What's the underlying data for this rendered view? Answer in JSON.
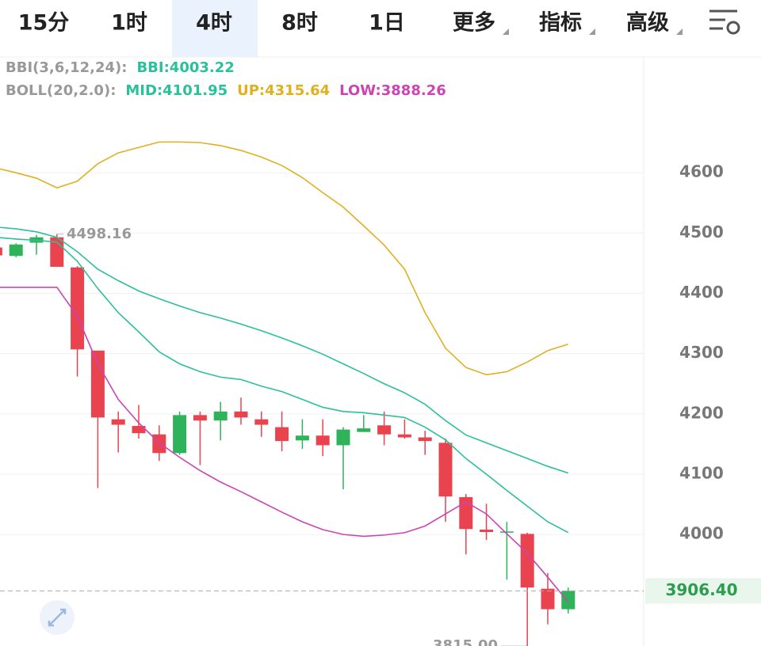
{
  "tabs": {
    "items": [
      "15分",
      "1时",
      "4时",
      "8时",
      "1日",
      "更多",
      "指标",
      "高级"
    ],
    "active": 2,
    "dropdown": [
      5,
      6,
      7
    ]
  },
  "indicators": [
    {
      "label": "BBI(3,6,12,24):",
      "items": [
        {
          "text": "BBI:4003.22",
          "color": "#2bbf9c"
        }
      ]
    },
    {
      "label": "BOLL(20,2.0):",
      "items": [
        {
          "text": "MID:4101.95",
          "color": "#2bbf9c"
        },
        {
          "text": "UP:4315.64",
          "color": "#e0b020"
        },
        {
          "text": "LOW:3888.26",
          "color": "#cc44b4"
        }
      ]
    }
  ],
  "chart_data": {
    "type": "candlestick",
    "categories": [
      null,
      null,
      null,
      null,
      null,
      null,
      null,
      null,
      null,
      null,
      null,
      null,
      null,
      null,
      null,
      null,
      null,
      null,
      null,
      null,
      null,
      null,
      null,
      null,
      null,
      null,
      null,
      null,
      null
    ],
    "open": [
      4476,
      4462,
      4484,
      4493,
      4443,
      4305,
      4191,
      4180,
      4166,
      4135,
      4198,
      4189,
      4204,
      4191,
      4178,
      4156,
      4164,
      4148,
      4170,
      4181,
      4166,
      4161,
      4152,
      4062,
      4008,
      4003,
      4001,
      3910,
      3876
    ],
    "close": [
      4463,
      4481,
      4493,
      4444,
      4307,
      4194,
      4182,
      4168,
      4135,
      4198,
      4189,
      4204,
      4194,
      4182,
      4155,
      4164,
      4148,
      4174,
      4176,
      4166,
      4161,
      4155,
      4063,
      4009,
      4004,
      4005,
      3912,
      3876,
      3906.4
    ],
    "high": [
      4480,
      4483,
      4497,
      4498.16,
      4445,
      4305,
      4204,
      4215,
      4181,
      4204,
      4204,
      4220,
      4227,
      4204,
      4204,
      4191,
      4191,
      4178,
      4198,
      4204,
      4191,
      4172,
      4159,
      4067,
      4051,
      4021,
      4003,
      3936,
      3912
    ],
    "low": [
      4460,
      4460,
      4464,
      4444,
      4262,
      4077,
      4136,
      4159,
      4122,
      4132,
      4115,
      4156,
      4182,
      4162,
      4138,
      4142,
      4130,
      4075,
      4172,
      4148,
      4159,
      4132,
      4021,
      3967,
      3991,
      3925,
      3815,
      3851,
      3869
    ],
    "up_color": "#2eb35a",
    "down_color": "#e8434f",
    "series": [
      {
        "name": "UP",
        "color": "#e0b020",
        "values": [
          4608,
          4600,
          4591,
          4575,
          4586,
          4615,
          4633,
          4642,
          4651,
          4651,
          4650,
          4645,
          4637,
          4626,
          4612,
          4592,
          4567,
          4543,
          4512,
          4480,
          4440,
          4368,
          4309,
          4277,
          4265,
          4270,
          4286,
          4305,
          4315.64
        ]
      },
      {
        "name": "MID",
        "color": "#2bbf9c",
        "values": [
          4510,
          4507,
          4502,
          4493,
          4469,
          4440,
          4421,
          4404,
          4391,
          4379,
          4368,
          4359,
          4349,
          4338,
          4326,
          4313,
          4299,
          4283,
          4267,
          4250,
          4235,
          4216,
          4189,
          4165,
          4152,
          4139,
          4126,
          4113,
          4101.95
        ]
      },
      {
        "name": "BBI",
        "color": "#2bbf9c",
        "values": [
          4493,
          4490,
          4488,
          4485,
          4453,
          4408,
          4368,
          4336,
          4303,
          4283,
          4270,
          4261,
          4257,
          4246,
          4237,
          4224,
          4211,
          4204,
          4202,
          4198,
          4194,
          4178,
          4157,
          4126,
          4100,
          4073,
          4047,
          4021,
          4003.22
        ]
      },
      {
        "name": "LOW",
        "color": "#cc44b4",
        "values": [
          4410,
          4410,
          4410,
          4410,
          4362,
          4283,
          4224,
          4185,
          4152,
          4128,
          4106,
          4087,
          4071,
          4054,
          4037,
          4021,
          4008,
          4000,
          3997,
          3999,
          4003,
          4014,
          4034,
          4054,
          4034,
          4001,
          3969,
          3929,
          3888.26
        ]
      }
    ],
    "ylim": [
      3815,
      4792
    ],
    "yticks": [
      4000,
      4100,
      4200,
      4300,
      4400,
      4500,
      4600
    ],
    "grid": true,
    "annotations": [
      {
        "value": 4498.16,
        "label": "4498.16",
        "index": 3
      },
      {
        "value": 3815,
        "label": "3815.00",
        "index": 26
      }
    ],
    "last_price": {
      "value": 3906.4,
      "label": "3906.40",
      "color": "#2a9d4e"
    }
  }
}
